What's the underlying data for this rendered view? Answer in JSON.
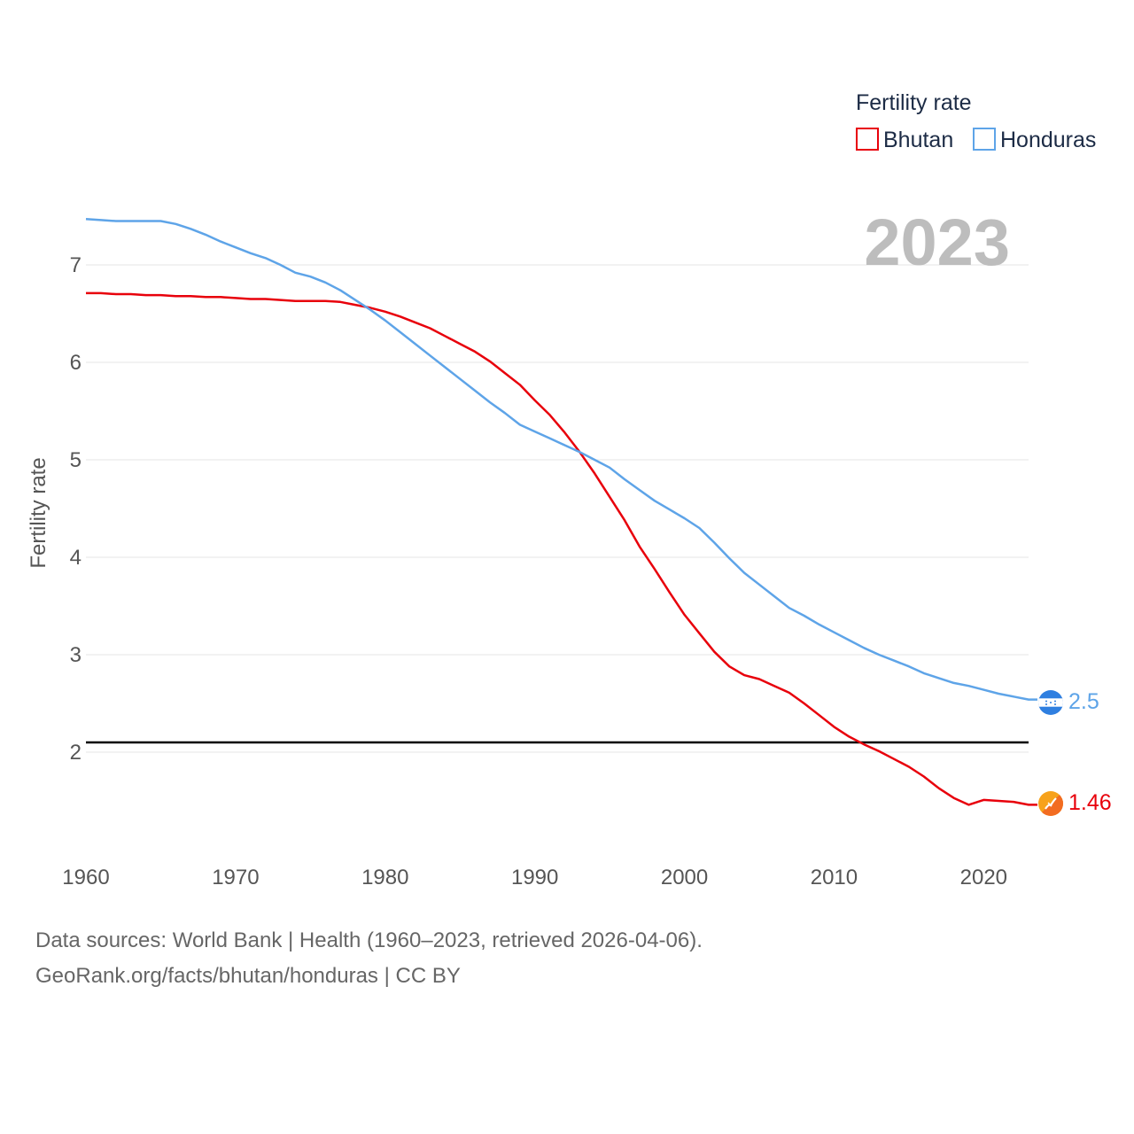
{
  "chart_data": {
    "type": "line",
    "title": "",
    "year_label": "2023",
    "xlabel": "",
    "ylabel": "Fertility rate",
    "xlim": [
      1960,
      2023
    ],
    "ylim": [
      1.3,
      7.6
    ],
    "x_ticks": [
      1960,
      1970,
      1980,
      1990,
      2000,
      2010,
      2020
    ],
    "y_ticks": [
      2,
      3,
      4,
      5,
      6,
      7
    ],
    "grid": true,
    "legend": {
      "title": "Fertility rate",
      "position": "top-right"
    },
    "reference_line": {
      "y": 2.1,
      "color": "#000000"
    },
    "x": [
      1960,
      1961,
      1962,
      1963,
      1964,
      1965,
      1966,
      1967,
      1968,
      1969,
      1970,
      1971,
      1972,
      1973,
      1974,
      1975,
      1976,
      1977,
      1978,
      1979,
      1980,
      1981,
      1982,
      1983,
      1984,
      1985,
      1986,
      1987,
      1988,
      1989,
      1990,
      1991,
      1992,
      1993,
      1994,
      1995,
      1996,
      1997,
      1998,
      1999,
      2000,
      2001,
      2002,
      2003,
      2004,
      2005,
      2006,
      2007,
      2008,
      2009,
      2010,
      2011,
      2012,
      2013,
      2014,
      2015,
      2016,
      2017,
      2018,
      2019,
      2020,
      2021,
      2022,
      2023
    ],
    "series": [
      {
        "name": "Bhutan",
        "color": "#e8000b",
        "end_label": "1.46",
        "flag_icon": "bhutan-flag-icon",
        "values": [
          6.71,
          6.71,
          6.7,
          6.7,
          6.69,
          6.69,
          6.68,
          6.68,
          6.67,
          6.67,
          6.66,
          6.65,
          6.65,
          6.64,
          6.63,
          6.63,
          6.63,
          6.62,
          6.59,
          6.56,
          6.52,
          6.47,
          6.41,
          6.35,
          6.27,
          6.19,
          6.11,
          6.01,
          5.89,
          5.77,
          5.61,
          5.46,
          5.28,
          5.08,
          4.86,
          4.62,
          4.38,
          4.11,
          3.88,
          3.64,
          3.41,
          3.22,
          3.03,
          2.88,
          2.79,
          2.75,
          2.68,
          2.61,
          2.5,
          2.38,
          2.26,
          2.16,
          2.08,
          2.01,
          1.93,
          1.85,
          1.75,
          1.63,
          1.53,
          1.46,
          1.51,
          1.5,
          1.49,
          1.46
        ]
      },
      {
        "name": "Honduras",
        "color": "#5ea4e8",
        "end_label": "2.5",
        "flag_icon": "honduras-flag-icon",
        "values": [
          7.47,
          7.46,
          7.45,
          7.45,
          7.45,
          7.45,
          7.42,
          7.37,
          7.31,
          7.24,
          7.18,
          7.12,
          7.07,
          7.0,
          6.92,
          6.88,
          6.82,
          6.74,
          6.64,
          6.54,
          6.43,
          6.31,
          6.19,
          6.07,
          5.95,
          5.83,
          5.71,
          5.59,
          5.48,
          5.36,
          5.29,
          5.22,
          5.15,
          5.08,
          5.0,
          4.92,
          4.8,
          4.69,
          4.58,
          4.49,
          4.4,
          4.3,
          4.15,
          3.99,
          3.84,
          3.72,
          3.6,
          3.48,
          3.4,
          3.31,
          3.23,
          3.15,
          3.07,
          3.0,
          2.94,
          2.88,
          2.81,
          2.76,
          2.71,
          2.68,
          2.64,
          2.6,
          2.57,
          2.54
        ]
      }
    ]
  },
  "footer": {
    "line1": "Data sources: World Bank | Health (1960–2023, retrieved 2026-04-06).",
    "line2": "GeoRank.org/facts/bhutan/honduras | CC BY"
  }
}
